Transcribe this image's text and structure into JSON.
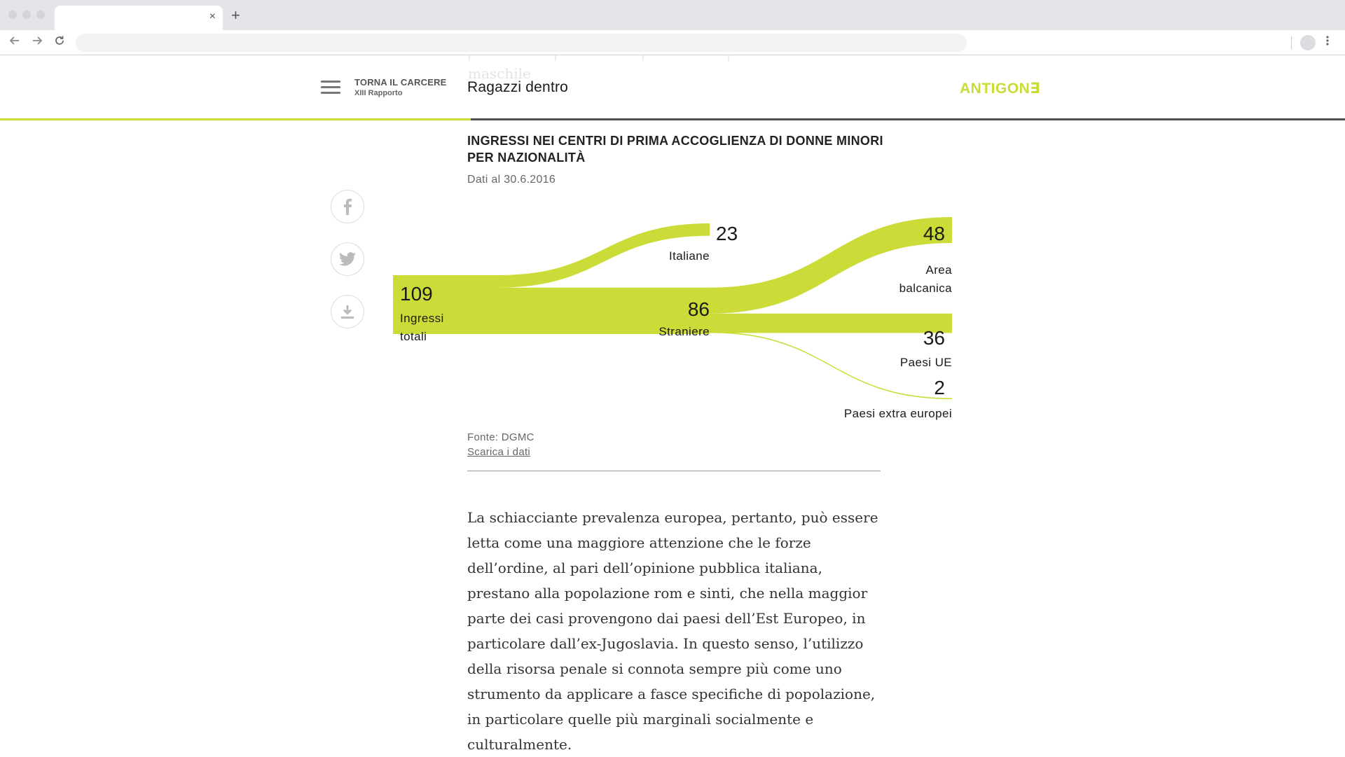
{
  "browser": {
    "back_icon": "arrow-left-icon",
    "forward_icon": "arrow-right-icon",
    "reload_icon": "reload-icon",
    "tab_close": "×",
    "new_tab": "+"
  },
  "header": {
    "back_title": "TORNA IL CARCERE",
    "back_subtitle": "XIII Rapporto",
    "page_title": "Ragazzi dentro",
    "logo": "ANTIGON∃",
    "ghost_text": "maschile",
    "accent_color": "#cbdc38",
    "reading_progress": 0.35
  },
  "social": [
    "facebook-icon",
    "twitter-icon",
    "download-icon"
  ],
  "chart": {
    "title": "INGRESSI NEI CENTRI DI PRIMA ACCOGLIENZA DI DONNE MINORI PER NAZIONALITÀ",
    "subtitle": "Dati al 30.6.2016",
    "source": "Fonte: DGMC",
    "download_label": "Scarica i dati",
    "nodes": {
      "total": {
        "value": "109",
        "label_1": "Ingressi",
        "label_2": "totali"
      },
      "italiane": {
        "value": "23",
        "label": "Italiane"
      },
      "straniere": {
        "value": "86",
        "label": "Straniere"
      },
      "balcanica": {
        "value": "48",
        "label_1": "Area",
        "label_2": "balcanica"
      },
      "ue": {
        "value": "36",
        "label": "Paesi UE"
      },
      "extra": {
        "value": "2",
        "label": "Paesi extra europei"
      }
    }
  },
  "chart_data": {
    "type": "sankey",
    "title": "INGRESSI NEI CENTRI DI PRIMA ACCOGLIENZA DI DONNE MINORI PER NAZIONALITÀ",
    "subtitle": "Dati al 30.6.2016",
    "nodes": [
      "Ingressi totali",
      "Italiane",
      "Straniere",
      "Area balcanica",
      "Paesi UE",
      "Paesi extra europei"
    ],
    "links": [
      {
        "source": "Ingressi totali",
        "target": "Italiane",
        "value": 23
      },
      {
        "source": "Ingressi totali",
        "target": "Straniere",
        "value": 86
      },
      {
        "source": "Straniere",
        "target": "Area balcanica",
        "value": 48
      },
      {
        "source": "Straniere",
        "target": "Paesi UE",
        "value": 36
      },
      {
        "source": "Straniere",
        "target": "Paesi extra europei",
        "value": 2
      }
    ],
    "color": "#cbdc38"
  },
  "article": {
    "paragraph": "La schiacciante prevalenza europea, pertanto, può essere letta come una maggiore attenzione che le forze dell’ordine, al pari dell’opinione pubblica italiana, prestano alla popolazione rom e sinti, che nella maggior parte dei casi provengono dai paesi dell’Est Europeo, in particolare dall’ex-Jugoslavia. In questo senso, l’utilizzo della risorsa penale si connota sempre più come uno strumento da applicare a fasce specifiche di popolazione, in particolare quelle più marginali socialmente e culturalmente."
  }
}
